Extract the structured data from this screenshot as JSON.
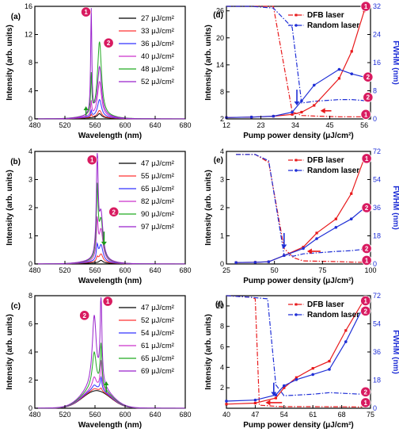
{
  "chart_data": [
    {
      "panel": "(a)",
      "type": "line",
      "xlabel": "Wavelength (nm)",
      "ylabel": "Intensity (arb. units)",
      "xlim": [
        480,
        680
      ],
      "ylim": [
        0,
        16
      ],
      "xticks": [
        480,
        520,
        560,
        600,
        640,
        680
      ],
      "yticks": [
        0,
        4,
        8,
        12,
        16
      ],
      "peak1_x": 555,
      "peak2_x": 566,
      "legend": [
        "27 μJ/cm²",
        "33 μJ/cm²",
        "36 μJ/cm²",
        "40 μJ/cm²",
        "48 μJ/cm²",
        "52 μJ/cm²"
      ],
      "colors": [
        "#000000",
        "#ff3333",
        "#3333ff",
        "#cc33cc",
        "#22aa22",
        "#9922cc"
      ],
      "series": [
        {
          "base": 0.15,
          "p1": 0.0,
          "p2": 0.6
        },
        {
          "base": 0.2,
          "p1": 0.4,
          "p2": 1.0
        },
        {
          "base": 0.25,
          "p1": 0.8,
          "p2": 2.5
        },
        {
          "base": 0.3,
          "p1": 2.0,
          "p2": 5.0
        },
        {
          "base": 0.35,
          "p1": 5.5,
          "p2": 10.6
        },
        {
          "base": 0.35,
          "p1": 15.3,
          "p2": 7.0
        }
      ],
      "badges": [
        {
          "n": "1",
          "x": 548,
          "y": 15.2
        },
        {
          "n": "2",
          "x": 578,
          "y": 10.8
        }
      ],
      "arrow_x": 548
    },
    {
      "panel": "(b)",
      "type": "line",
      "xlabel": "Wavelength (nm)",
      "ylabel": "Intensity (arb. units)",
      "xlim": [
        480,
        680
      ],
      "ylim": [
        0,
        4
      ],
      "xticks": [
        480,
        520,
        560,
        600,
        640,
        680
      ],
      "yticks": [
        0,
        1,
        2,
        3,
        4
      ],
      "peak1_x": 563,
      "peak2_x": 568,
      "legend": [
        "47 μJ/cm²",
        "55 μJ/cm²",
        "65 μJ/cm²",
        "82 μJ/cm²",
        "90 μJ/cm²",
        "97 μJ/cm²"
      ],
      "colors": [
        "#000000",
        "#ff3333",
        "#3333ff",
        "#cc33cc",
        "#22aa22",
        "#9922cc"
      ],
      "series": [
        {
          "base": 0.03,
          "p1": 0.0,
          "p2": 0.1
        },
        {
          "base": 0.05,
          "p1": 0.15,
          "p2": 0.3
        },
        {
          "base": 0.06,
          "p1": 0.5,
          "p2": 0.6
        },
        {
          "base": 0.07,
          "p1": 1.3,
          "p2": 1.1
        },
        {
          "base": 0.08,
          "p1": 2.4,
          "p2": 1.4
        },
        {
          "base": 0.08,
          "p1": 3.6,
          "p2": 1.6
        }
      ],
      "badges": [
        {
          "n": "1",
          "x": 556,
          "y": 3.7
        },
        {
          "n": "2",
          "x": 585,
          "y": 1.85
        }
      ],
      "arrow_x": 572
    },
    {
      "panel": "(c)",
      "type": "line",
      "xlabel": "Wavelength (nm)",
      "ylabel": "Intensity (arb. units)",
      "xlim": [
        480,
        680
      ],
      "ylim": [
        0,
        8
      ],
      "xticks": [
        480,
        520,
        560,
        600,
        640,
        680
      ],
      "yticks": [
        0,
        2,
        4,
        6,
        8
      ],
      "peak1_x": 568,
      "peak2_x": 559,
      "legend": [
        "47 μJ/cm²",
        "52 μJ/cm²",
        "54 μJ/cm²",
        "61 μJ/cm²",
        "65 μJ/cm²",
        "69 μJ/cm²"
      ],
      "colors": [
        "#000000",
        "#ff3333",
        "#3333ff",
        "#cc33cc",
        "#22aa22",
        "#9922cc"
      ],
      "series": [
        {
          "base": 1.25,
          "p1": 0.0,
          "p2": 0.0
        },
        {
          "base": 1.3,
          "p1": 0.2,
          "p2": 0.1
        },
        {
          "base": 1.35,
          "p1": 0.9,
          "p2": 0.3
        },
        {
          "base": 1.4,
          "p1": 2.0,
          "p2": 0.8
        },
        {
          "base": 1.45,
          "p1": 3.0,
          "p2": 2.5
        },
        {
          "base": 1.5,
          "p1": 6.2,
          "p2": 5.0
        }
      ],
      "badges": [
        {
          "n": "1",
          "x": 577,
          "y": 7.6
        },
        {
          "n": "2",
          "x": 546,
          "y": 6.6
        }
      ],
      "arrow_x": 575
    },
    {
      "panel": "(d)",
      "type": "line",
      "xlabel": "Pump power density (μJ/cm²)",
      "ylabel": "Intensity (arb. units)",
      "y2label": "FWHM (nm)",
      "xlim": [
        12,
        58
      ],
      "ylim": [
        2,
        27
      ],
      "y2lim": [
        0,
        32
      ],
      "xticks": [
        12,
        23,
        34,
        45,
        56
      ],
      "yticks": [
        2,
        8,
        14,
        20,
        26
      ],
      "y2ticks": [
        0,
        8,
        16,
        24,
        32
      ],
      "legend": [
        "DFB laser",
        "Random laser"
      ],
      "intensity": [
        {
          "name": "DFB laser",
          "color": "#e8191b",
          "x": [
            12,
            20,
            27,
            33,
            36,
            40,
            48,
            52,
            56
          ],
          "y": [
            2.3,
            2.4,
            2.6,
            3.0,
            3.5,
            5.0,
            11.0,
            17.0,
            26.0
          ]
        },
        {
          "name": "Random laser",
          "color": "#1f2fd6",
          "x": [
            12,
            20,
            27,
            33,
            36,
            40,
            48,
            52,
            56
          ],
          "y": [
            2.3,
            2.4,
            2.6,
            3.5,
            6.0,
            9.5,
            13.0,
            12.0,
            11.3
          ]
        }
      ],
      "fwhm": [
        {
          "name": "DFB laser",
          "color": "#e8191b",
          "x": [
            12,
            20,
            27,
            33,
            36,
            40,
            48,
            52,
            56
          ],
          "y": [
            32,
            32,
            32,
            2,
            1.0,
            0.8,
            0.6,
            0.6,
            0.6
          ]
        },
        {
          "name": "Random laser",
          "color": "#1f2fd6",
          "x": [
            12,
            20,
            27,
            33,
            36,
            40,
            48,
            52,
            56
          ],
          "y": [
            32,
            32,
            31.5,
            26,
            4.5,
            5.0,
            5.5,
            5.5,
            5.2
          ]
        }
      ],
      "badges": [
        {
          "n": "1",
          "x": 56.5,
          "y": 27
        },
        {
          "n": "2",
          "x": 57.2,
          "y": 11.3
        },
        {
          "n": "2",
          "x": 57.2,
          "y": 6.8
        },
        {
          "n": "1",
          "x": 56.5,
          "y": 3.0
        }
      ],
      "arrows": [
        {
          "x": 34.5,
          "y1": 8.5,
          "y2": 5.0,
          "color": "#1f2fd6"
        },
        {
          "x2": 42,
          "x1": 45.5,
          "y": 3.8,
          "color": "#e8191b"
        }
      ]
    },
    {
      "panel": "(e)",
      "type": "line",
      "xlabel": "Pump power density (μJ/cm²)",
      "ylabel": "Intensity (arb. units)",
      "y2label": "FWHM (nm)",
      "xlim": [
        25,
        100
      ],
      "ylim": [
        0,
        4
      ],
      "y2lim": [
        0,
        72
      ],
      "xticks": [
        25,
        50,
        75,
        100
      ],
      "yticks": [
        0,
        1,
        2,
        3,
        4
      ],
      "y2ticks": [
        0,
        18,
        36,
        54,
        72
      ],
      "legend": [
        "DFB laser",
        "Random laser"
      ],
      "intensity": [
        {
          "name": "DFB laser",
          "color": "#e8191b",
          "x": [
            30,
            40,
            47,
            55,
            65,
            72,
            82,
            90,
            97
          ],
          "y": [
            0.05,
            0.06,
            0.08,
            0.3,
            0.6,
            1.1,
            1.6,
            2.5,
            3.8
          ]
        },
        {
          "name": "Random laser",
          "color": "#1f2fd6",
          "x": [
            30,
            40,
            47,
            55,
            65,
            72,
            82,
            90,
            97
          ],
          "y": [
            0.05,
            0.06,
            0.08,
            0.3,
            0.55,
            0.9,
            1.3,
            1.6,
            2.0
          ]
        }
      ],
      "fwhm": [
        {
          "name": "DFB laser",
          "color": "#e8191b",
          "x": [
            30,
            40,
            47,
            55,
            60,
            65,
            82,
            90,
            97
          ],
          "y": [
            70,
            70,
            65,
            10,
            4,
            2,
            1.5,
            1.2,
            1.0
          ]
        },
        {
          "name": "Random laser",
          "color": "#1f2fd6",
          "x": [
            30,
            40,
            47,
            55,
            60,
            65,
            82,
            90,
            97
          ],
          "y": [
            70,
            70,
            66,
            6,
            5,
            6.5,
            8,
            8.5,
            9.5
          ]
        }
      ],
      "badges": [
        {
          "n": "1",
          "x": 98,
          "y": 3.75
        },
        {
          "n": "2",
          "x": 98,
          "y": 2.0
        },
        {
          "n": "2",
          "x": 98,
          "y": 0.55
        },
        {
          "n": "1",
          "x": 98,
          "y": 0.13
        }
      ],
      "arrows": [
        {
          "x": 55,
          "y1": 1.1,
          "y2": 0.55,
          "color": "#1f2fd6"
        },
        {
          "x2": 67,
          "x1": 74,
          "y": 0.45,
          "color": "#e8191b"
        }
      ]
    },
    {
      "panel": "(f)",
      "type": "line",
      "xlabel": "Pump power density (μJ/cm²)",
      "ylabel": "Intensity (arb. units)",
      "y2label": "FWHM (nm)",
      "xlim": [
        40,
        75
      ],
      "ylim": [
        0,
        11
      ],
      "y2lim": [
        0,
        72
      ],
      "xticks": [
        40,
        47,
        54,
        61,
        68,
        75
      ],
      "yticks": [
        2,
        4,
        6,
        8,
        10
      ],
      "y2ticks": [
        0,
        18,
        36,
        54,
        72
      ],
      "legend": [
        "DFB laser",
        "Random laser"
      ],
      "intensity": [
        {
          "name": "DFB laser",
          "color": "#e8191b",
          "x": [
            40,
            47,
            52,
            54,
            57,
            61,
            65,
            69,
            73
          ],
          "y": [
            0.4,
            0.5,
            1.0,
            2.0,
            3.0,
            3.9,
            4.6,
            7.6,
            10.3
          ]
        },
        {
          "name": "Random laser",
          "color": "#1f2fd6",
          "x": [
            40,
            47,
            52,
            54,
            57,
            61,
            65,
            69,
            73
          ],
          "y": [
            0.7,
            0.8,
            1.3,
            2.2,
            2.8,
            3.3,
            3.8,
            6.5,
            9.7
          ]
        }
      ],
      "fwhm": [
        {
          "name": "DFB laser",
          "color": "#e8191b",
          "x": [
            40,
            46,
            47,
            48,
            52,
            54,
            61,
            69,
            73
          ],
          "y": [
            72,
            71,
            70,
            2,
            1.2,
            1.0,
            1.0,
            0.9,
            0.8
          ]
        },
        {
          "name": "Random laser",
          "color": "#1f2fd6",
          "x": [
            40,
            46,
            50,
            52,
            54,
            61,
            65,
            69,
            73
          ],
          "y": [
            72,
            71,
            70,
            15,
            8,
            9,
            10,
            9.5,
            9
          ]
        }
      ],
      "badges": [
        {
          "n": "1",
          "x": 73.8,
          "y": 10.5
        },
        {
          "n": "2",
          "x": 73.8,
          "y": 9.5
        },
        {
          "n": "2",
          "x": 73.8,
          "y": 1.6
        },
        {
          "n": "1",
          "x": 73.8,
          "y": 0.55
        }
      ],
      "arrows": [
        {
          "x": 51.5,
          "y1": 2.5,
          "y2": 1.2,
          "color": "#1f2fd6"
        },
        {
          "x2": 49.5,
          "x1": 53.5,
          "y": 0.55,
          "color": "#e8191b"
        }
      ]
    }
  ],
  "colors": {
    "dfb": "#e8191b",
    "random": "#1f2fd6",
    "badge": "#d81b60",
    "arrow_green": "#1a9a1a"
  }
}
